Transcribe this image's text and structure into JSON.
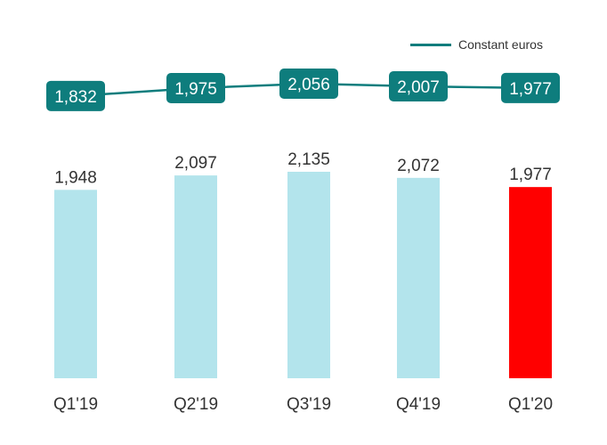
{
  "chart_data": {
    "type": "bar",
    "categories": [
      "Q1'19",
      "Q2'19",
      "Q3'19",
      "Q4'19",
      "Q1'20"
    ],
    "values": [
      1948,
      2097,
      2135,
      2072,
      1977
    ],
    "bar_color": "#b3e4ec",
    "highlight_color": "#ff0000",
    "highlight_index": 4,
    "ylim": [
      0,
      2135
    ],
    "line_series": {
      "name": "Constant euros",
      "values": [
        1832,
        1975,
        2056,
        2007,
        1977
      ],
      "color": "#0e7d7d",
      "label_box_color": "#0e7d7d"
    },
    "value_labels": [
      "1,948",
      "2,097",
      "2,135",
      "2,072",
      "1,977"
    ],
    "line_labels": [
      "1,832",
      "1,975",
      "2,056",
      "2,007",
      "1,977"
    ],
    "legend_position": "top-right"
  }
}
